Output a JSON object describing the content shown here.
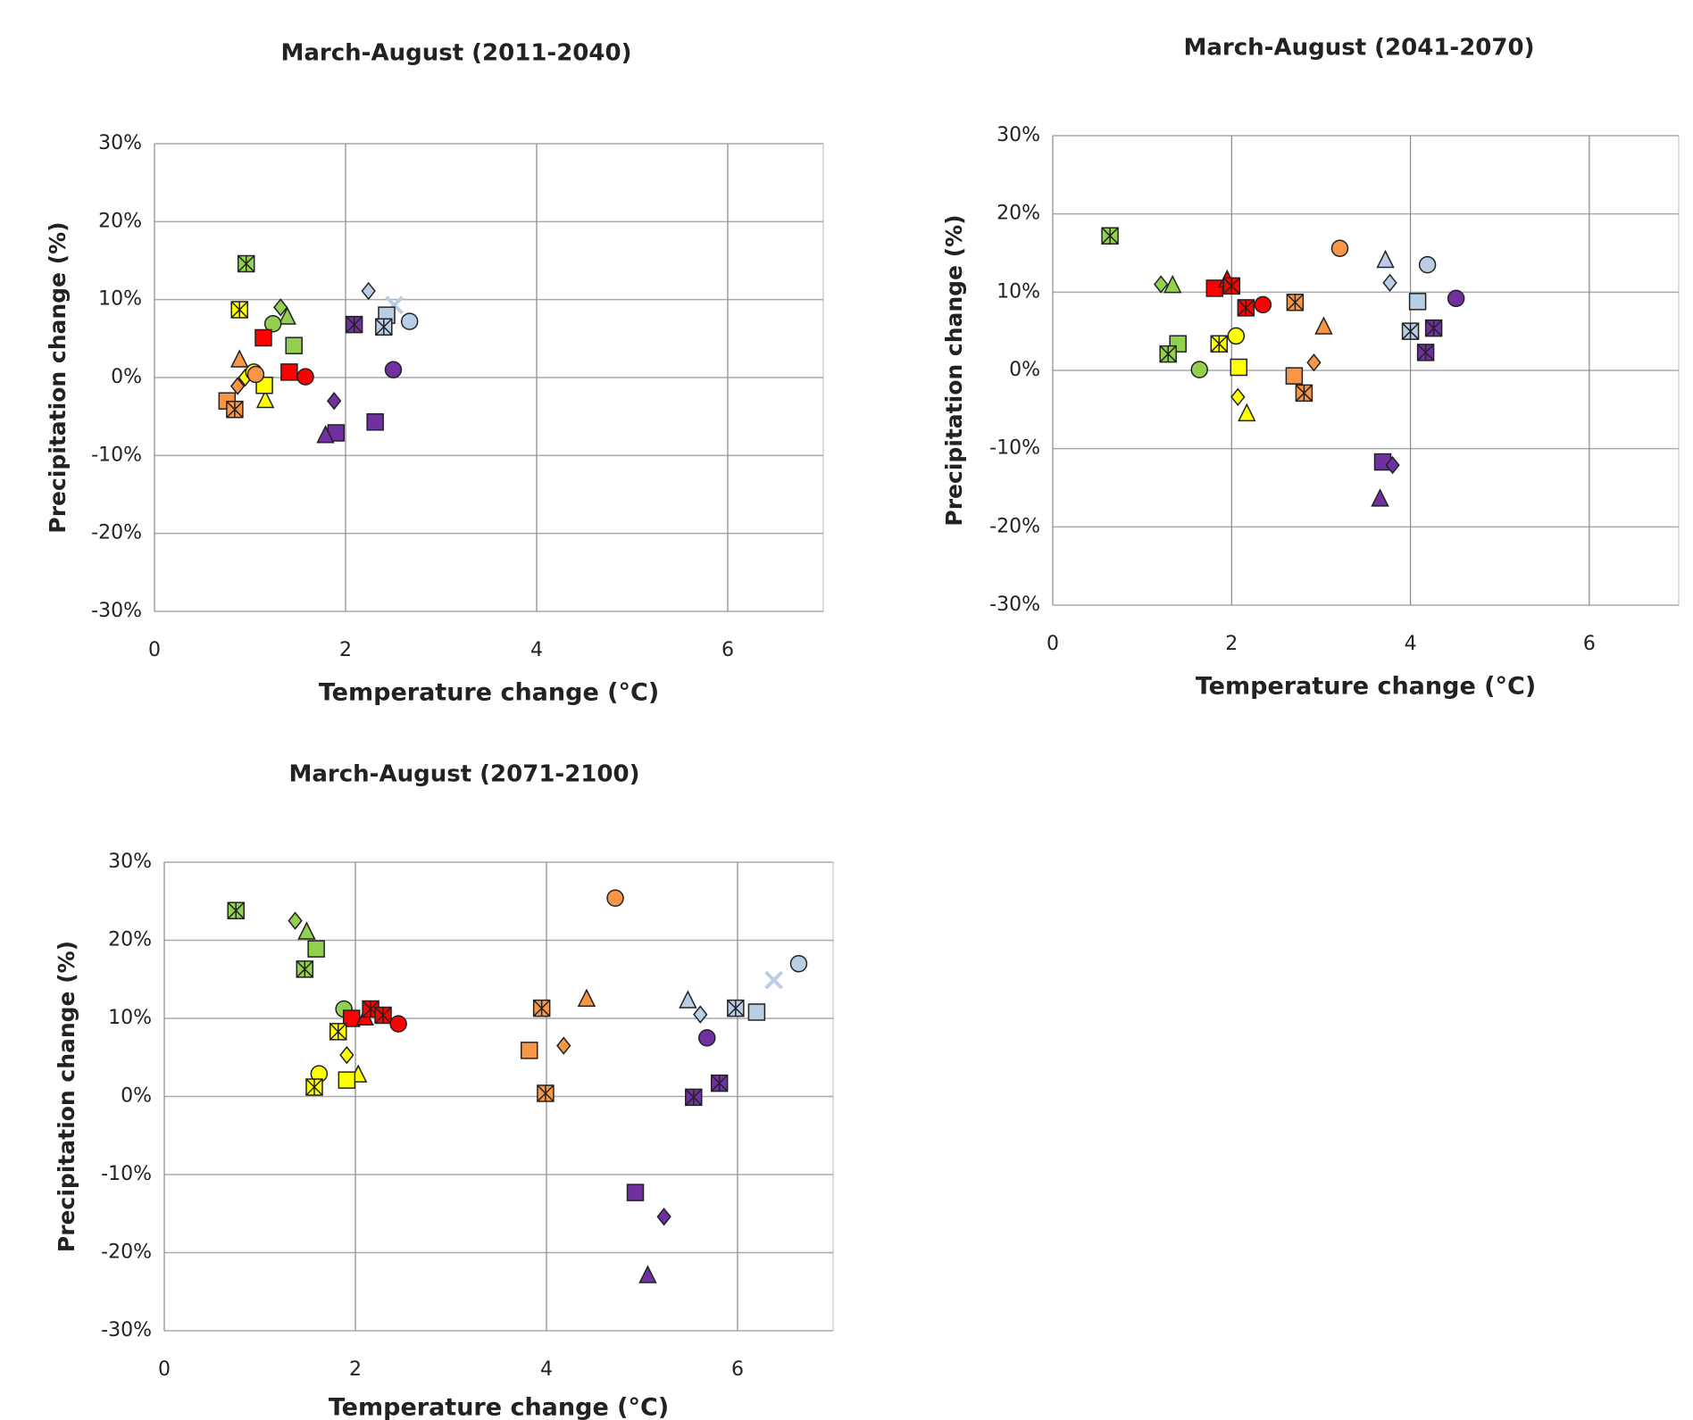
{
  "chart_data": [
    {
      "type": "scatter",
      "title": "March-August (2011-2040)",
      "xlabel": "Temperature change (°C)",
      "ylabel": "Precipitation change (%)",
      "xlim": [
        0,
        7
      ],
      "ylim": [
        -30,
        30
      ],
      "xticks": [
        0,
        2,
        4,
        6
      ],
      "yticks": [
        {
          "value": -30,
          "label": "-30%"
        },
        {
          "value": -20,
          "label": "-20%"
        },
        {
          "value": -10,
          "label": "-10%"
        },
        {
          "value": 0,
          "label": "0%"
        },
        {
          "value": 10,
          "label": "10%"
        },
        {
          "value": 20,
          "label": "20%"
        },
        {
          "value": 30,
          "label": "30%"
        }
      ],
      "grid": true,
      "series": [
        {
          "color": "#92d050",
          "markers": [
            "star",
            "diamond",
            "triangle",
            "circle",
            "square"
          ],
          "x": [
            0.96,
            1.32,
            1.39,
            1.24,
            1.46
          ],
          "values": [
            14.6,
            9,
            7.9,
            6.9,
            4.1
          ]
        },
        {
          "color": "#ffff00",
          "markers": [
            "star",
            "diamond",
            "triangle",
            "square",
            "circle"
          ],
          "x": [
            0.89,
            0.95,
            1.16,
            1.15,
            1.04
          ],
          "values": [
            8.7,
            0,
            -2.8,
            -1.0,
            0.7
          ]
        },
        {
          "color": "#ff0000",
          "markers": [
            "square",
            "square",
            "circle"
          ],
          "x": [
            1.14,
            1.41,
            1.58
          ],
          "values": [
            5.1,
            0.7,
            0.1
          ]
        },
        {
          "color": "#f79646",
          "markers": [
            "triangle",
            "diamond",
            "square",
            "star",
            "circle"
          ],
          "x": [
            0.89,
            0.87,
            0.76,
            0.84,
            1.06
          ],
          "values": [
            2.4,
            -1.1,
            -3,
            -4.1,
            0.4
          ]
        },
        {
          "color": "#b9cde5",
          "markers": [
            "diamond",
            "x",
            "square",
            "star",
            "circle"
          ],
          "x": [
            2.24,
            2.51,
            2.43,
            2.4,
            2.67
          ],
          "values": [
            11.1,
            9.3,
            8,
            6.5,
            7.2
          ]
        },
        {
          "color": "#7030a0",
          "markers": [
            "star",
            "circle",
            "diamond",
            "square",
            "triangle",
            "square"
          ],
          "x": [
            2.09,
            2.5,
            1.88,
            1.9,
            1.79,
            2.31
          ],
          "values": [
            6.8,
            1.0,
            -3,
            -7.1,
            -7.3,
            -5.7
          ]
        }
      ]
    },
    {
      "type": "scatter",
      "title": "March-August (2041-2070)",
      "xlabel": "Temperature change (°C)",
      "ylabel": "Precipitation change (%)",
      "xlim": [
        0,
        7
      ],
      "ylim": [
        -30,
        30
      ],
      "xticks": [
        0,
        2,
        4,
        6
      ],
      "yticks": [
        {
          "value": -30,
          "label": "-30%"
        },
        {
          "value": -20,
          "label": "-20%"
        },
        {
          "value": -10,
          "label": "-10%"
        },
        {
          "value": 0,
          "label": "0%"
        },
        {
          "value": 10,
          "label": "10%"
        },
        {
          "value": 20,
          "label": "20%"
        },
        {
          "value": 30,
          "label": "30%"
        }
      ],
      "grid": true,
      "series": [
        {
          "color": "#92d050",
          "markers": [
            "star",
            "diamond",
            "triangle",
            "square",
            "star",
            "circle"
          ],
          "x": [
            0.64,
            1.21,
            1.34,
            1.4,
            1.29,
            1.64
          ],
          "values": [
            17.2,
            11,
            11,
            3.4,
            2.1,
            0.1
          ]
        },
        {
          "color": "#ff0000",
          "markers": [
            "square",
            "triangle",
            "star",
            "star",
            "circle"
          ],
          "x": [
            1.81,
            1.95,
            2.0,
            2.16,
            2.35
          ],
          "values": [
            10.5,
            11.7,
            10.8,
            8,
            8.4
          ]
        },
        {
          "color": "#ffff00",
          "markers": [
            "star",
            "circle",
            "square",
            "diamond",
            "triangle"
          ],
          "x": [
            1.86,
            2.05,
            2.08,
            2.07,
            2.17
          ],
          "values": [
            3.4,
            4.4,
            0.4,
            -3.4,
            -5.4
          ]
        },
        {
          "color": "#f79646",
          "markers": [
            "circle",
            "star",
            "triangle",
            "diamond",
            "square",
            "star"
          ],
          "x": [
            3.21,
            2.71,
            3.03,
            2.92,
            2.7,
            2.81
          ],
          "values": [
            15.6,
            8.7,
            5.7,
            1,
            -0.7,
            -2.9
          ]
        },
        {
          "color": "#b9cde5",
          "markers": [
            "triangle",
            "diamond",
            "circle",
            "square",
            "star"
          ],
          "x": [
            3.72,
            3.77,
            4.19,
            4.08,
            4.0
          ],
          "values": [
            14.2,
            11.2,
            13.5,
            8.8,
            5
          ]
        },
        {
          "color": "#7030a0",
          "markers": [
            "circle",
            "star",
            "star",
            "square",
            "diamond",
            "triangle"
          ],
          "x": [
            4.51,
            4.26,
            4.17,
            3.69,
            3.8,
            3.66
          ],
          "values": [
            9.2,
            5.4,
            2.3,
            -11.7,
            -12.1,
            -16.3
          ]
        }
      ]
    },
    {
      "type": "scatter",
      "title": "March-August (2071-2100)",
      "xlabel": "Temperature change (°C)",
      "ylabel": "Precipitation change (%)",
      "xlim": [
        0,
        7
      ],
      "ylim": [
        -30,
        30
      ],
      "xticks": [
        0,
        2,
        4,
        6
      ],
      "yticks": [
        {
          "value": -30,
          "label": "-30%"
        },
        {
          "value": -20,
          "label": "-20%"
        },
        {
          "value": -10,
          "label": "-10%"
        },
        {
          "value": 0,
          "label": "0%"
        },
        {
          "value": 10,
          "label": "10%"
        },
        {
          "value": 20,
          "label": "20%"
        },
        {
          "value": 30,
          "label": "30%"
        }
      ],
      "grid": true,
      "series": [
        {
          "color": "#92d050",
          "markers": [
            "star",
            "diamond",
            "triangle",
            "square",
            "star",
            "circle"
          ],
          "x": [
            0.75,
            1.37,
            1.49,
            1.59,
            1.47,
            1.88
          ],
          "values": [
            23.8,
            22.5,
            21.2,
            18.9,
            16.3,
            11.2
          ]
        },
        {
          "color": "#ff0000",
          "markers": [
            "square",
            "triangle",
            "star",
            "star",
            "circle"
          ],
          "x": [
            1.96,
            2.1,
            2.16,
            2.29,
            2.45
          ],
          "values": [
            10,
            10.2,
            11.2,
            10.4,
            9.3
          ]
        },
        {
          "color": "#ffff00",
          "markers": [
            "star",
            "diamond",
            "triangle",
            "square",
            "circle",
            "star"
          ],
          "x": [
            1.82,
            1.91,
            2.03,
            1.91,
            1.62,
            1.57
          ],
          "values": [
            8.3,
            5.3,
            2.9,
            2.1,
            2.9,
            1.2
          ]
        },
        {
          "color": "#f79646",
          "markers": [
            "circle",
            "triangle",
            "star",
            "diamond",
            "square",
            "star"
          ],
          "x": [
            4.72,
            4.42,
            3.95,
            4.18,
            3.82,
            3.99
          ],
          "values": [
            25.4,
            12.6,
            11.3,
            6.5,
            5.9,
            0.4
          ]
        },
        {
          "color": "#b9cde5",
          "markers": [
            "circle",
            "x",
            "square",
            "star",
            "triangle",
            "diamond"
          ],
          "x": [
            6.64,
            6.38,
            6.2,
            5.98,
            5.48,
            5.61
          ],
          "values": [
            17,
            14.9,
            10.8,
            11.3,
            12.4,
            10.5
          ]
        },
        {
          "color": "#7030a0",
          "markers": [
            "circle",
            "star",
            "star",
            "square",
            "diamond",
            "triangle"
          ],
          "x": [
            5.68,
            5.81,
            5.54,
            4.93,
            5.23,
            5.06
          ],
          "values": [
            7.5,
            1.7,
            -0.1,
            -12.3,
            -15.4,
            -22.8
          ]
        }
      ]
    }
  ]
}
